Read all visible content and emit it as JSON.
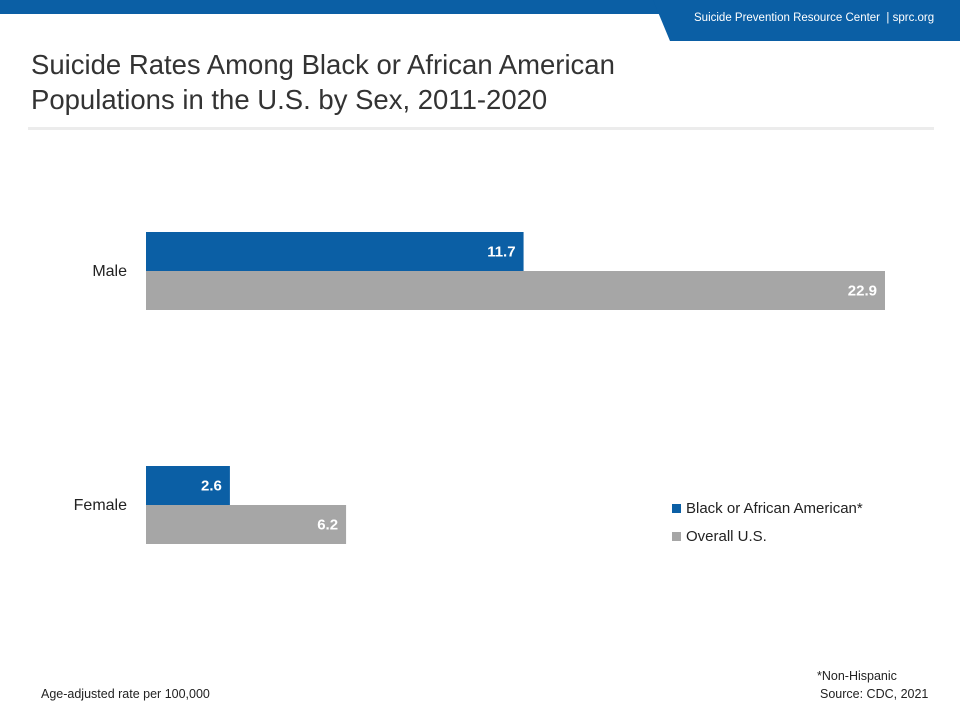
{
  "header": {
    "org": "Suicide Prevention Resource Center",
    "url": "sprc.org"
  },
  "colors": {
    "brand_blue": "#0b5fa5",
    "overall_gray": "#a6a6a6"
  },
  "chart_data": {
    "type": "bar",
    "orientation": "horizontal",
    "title": [
      "Suicide Rates Among Black or African American",
      "Populations in the U.S. by Sex, 2011-2020"
    ],
    "categories": [
      "Male",
      "Female"
    ],
    "series": [
      {
        "name": "Black or African American*",
        "values": [
          11.7,
          2.6
        ],
        "color": "#0b5fa5"
      },
      {
        "name": "Overall U.S.",
        "values": [
          22.9,
          6.2
        ],
        "color": "#a6a6a6"
      }
    ],
    "xlim": [
      0,
      22.9
    ],
    "grid": false,
    "legend_position": "bottom-right",
    "data_labels": true,
    "note_left": "Age-adjusted rate per 100,000",
    "note_right": [
      "*Non-Hispanic",
      "Source: CDC, 2021"
    ]
  }
}
